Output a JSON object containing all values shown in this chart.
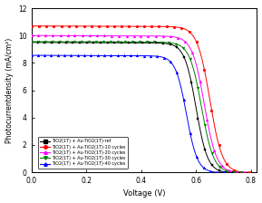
{
  "title": "",
  "xlabel": "Voltage (V)",
  "ylabel": "Photocurrentdensity (mA/cm²)",
  "xlim": [
    0.0,
    0.82
  ],
  "ylim": [
    0,
    12
  ],
  "yticks": [
    0,
    2,
    4,
    6,
    8,
    10,
    12
  ],
  "xticks": [
    0.0,
    0.2,
    0.4,
    0.6,
    0.8
  ],
  "series": [
    {
      "label": "TiO2(1T) + Au-TiO2(1T)-ref",
      "color": "black",
      "marker": "s",
      "jsc": 9.5,
      "voc": 0.735,
      "knee": 0.6,
      "sharpness": 35
    },
    {
      "label": "TiO2(1T) + Au-TiO2(1T)-10 cycles",
      "color": "red",
      "marker": "o",
      "jsc": 10.7,
      "voc": 0.795,
      "knee": 0.65,
      "sharpness": 35
    },
    {
      "label": "TiO2(1T) + Au-TiO2(1T)-20 cycles",
      "color": "magenta",
      "marker": "^",
      "jsc": 10.0,
      "voc": 0.775,
      "knee": 0.63,
      "sharpness": 35
    },
    {
      "label": "TiO2(1T) + Au-TiO2(1T)-30 cycles",
      "color": "green",
      "marker": "v",
      "jsc": 9.55,
      "voc": 0.765,
      "knee": 0.62,
      "sharpness": 35
    },
    {
      "label": "TiO2(1T) + Au-TiO2(1T)-40 cycles",
      "color": "blue",
      "marker": "^",
      "jsc": 8.55,
      "voc": 0.7,
      "knee": 0.565,
      "sharpness": 35
    }
  ],
  "bg_color": "#ffffff",
  "figsize": [
    2.89,
    2.24
  ],
  "dpi": 100
}
